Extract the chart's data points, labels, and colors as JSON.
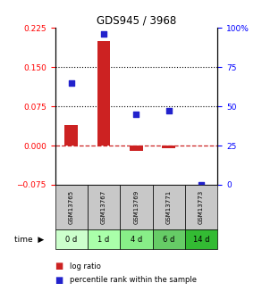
{
  "title": "GDS945 / 3968",
  "samples": [
    "GSM13765",
    "GSM13767",
    "GSM13769",
    "GSM13771",
    "GSM13773"
  ],
  "time_labels": [
    "0 d",
    "1 d",
    "4 d",
    "6 d",
    "14 d"
  ],
  "log_ratio": [
    0.04,
    0.2,
    -0.01,
    -0.005,
    0.0
  ],
  "percentile_rank": [
    65,
    96,
    45,
    47,
    0.0
  ],
  "left_ylim": [
    -0.075,
    0.225
  ],
  "right_ylim": [
    0,
    100
  ],
  "left_yticks": [
    -0.075,
    0,
    0.075,
    0.15,
    0.225
  ],
  "right_yticks": [
    0,
    25,
    50,
    75,
    100
  ],
  "right_yticklabels": [
    "0",
    "25",
    "50",
    "75",
    "100%"
  ],
  "hlines": [
    0.075,
    0.15
  ],
  "bar_color": "#cc2222",
  "scatter_color": "#2222cc",
  "zero_line_color": "#cc2222",
  "grid_style": "dotted",
  "time_colors": [
    "#ccffcc",
    "#aaffaa",
    "#88ee88",
    "#66cc66",
    "#33bb33"
  ],
  "sample_bg_color": "#c8c8c8",
  "legend_bar_label": "log ratio",
  "legend_scatter_label": "percentile rank within the sample",
  "background_color": "#ffffff"
}
